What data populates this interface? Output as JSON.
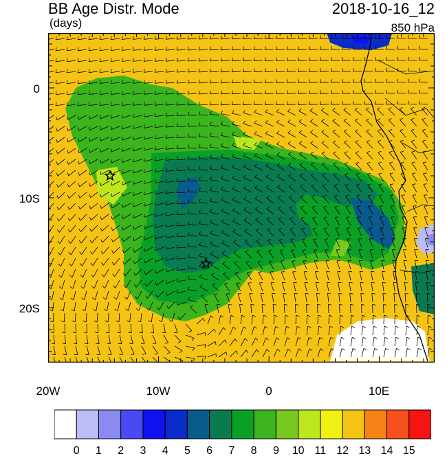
{
  "header": {
    "title": "BB Age Distr. Mode",
    "units": "(days)",
    "datetime": "2018-10-16_12",
    "level": "850 hPa"
  },
  "map": {
    "lon_range": [
      -20,
      15
    ],
    "lat_range": [
      -25,
      5
    ],
    "lat_ticks": [
      {
        "lat": 0,
        "label": "0"
      },
      {
        "lat": -10,
        "label": "10S"
      },
      {
        "lat": -20,
        "label": "20S"
      }
    ],
    "lon_ticks": [
      {
        "lon": -20,
        "label": "20W"
      },
      {
        "lon": -10,
        "label": "10W"
      },
      {
        "lon": 0,
        "label": "0"
      },
      {
        "lon": 10,
        "label": "10E"
      }
    ],
    "markers": [
      {
        "type": "star",
        "lon": -14.4,
        "lat": -8.0
      },
      {
        "type": "star",
        "lon": -5.7,
        "lat": -16.0
      }
    ],
    "background_value": 13,
    "wind_barbs": true,
    "coastline": true
  },
  "colorbar": {
    "labels": [
      "0",
      "1",
      "2",
      "3",
      "4",
      "5",
      "6",
      "7",
      "8",
      "9",
      "10",
      "11",
      "12",
      "13",
      "14",
      "15"
    ],
    "colors": [
      "#ffffff",
      "#bdbdf5",
      "#8a8af0",
      "#4a4af5",
      "#1010f0",
      "#0a2cc8",
      "#0a5a8c",
      "#0a7a50",
      "#0aa028",
      "#3cb41e",
      "#78c81e",
      "#bee61e",
      "#f0f014",
      "#f5c314",
      "#f58214",
      "#f5501e",
      "#f51414"
    ]
  }
}
